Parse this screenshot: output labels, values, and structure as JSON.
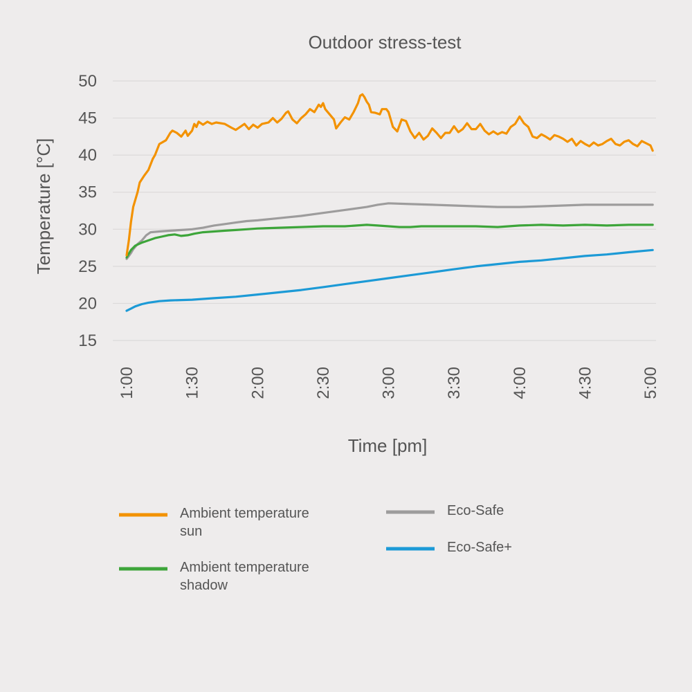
{
  "chart_data": {
    "type": "line",
    "title": "Outdoor stress-test",
    "xlabel": "Time [pm]",
    "ylabel": "Temperature [°C]",
    "ylim": [
      15,
      50
    ],
    "xlim": [
      "1:00",
      "5:00"
    ],
    "y_ticks": [
      "50",
      "45",
      "40",
      "35",
      "30",
      "25",
      "20",
      "15"
    ],
    "x_ticks": [
      "1:00",
      "1:30",
      "2:00",
      "2:30",
      "3:00",
      "3:30",
      "4:00",
      "4:30",
      "5:00"
    ],
    "grid": true,
    "legend_position": "bottom",
    "series": [
      {
        "name": "Ambient temperature sun",
        "color": "#f39200",
        "points": [
          [
            "1:00",
            26.5
          ],
          [
            "1:01",
            28.5
          ],
          [
            "1:02",
            31
          ],
          [
            "1:03",
            33
          ],
          [
            "1:05",
            35
          ],
          [
            "1:06",
            36.3
          ],
          [
            "1:08",
            37.2
          ],
          [
            "1:10",
            38
          ],
          [
            "1:12",
            39.5
          ],
          [
            "1:13",
            40
          ],
          [
            "1:15",
            41.5
          ],
          [
            "1:18",
            42
          ],
          [
            "1:20",
            43
          ],
          [
            "1:21",
            43.3
          ],
          [
            "1:23",
            43
          ],
          [
            "1:25",
            42.5
          ],
          [
            "1:27",
            43.3
          ],
          [
            "1:28",
            42.6
          ],
          [
            "1:30",
            43.3
          ],
          [
            "1:31",
            44.2
          ],
          [
            "1:32",
            43.8
          ],
          [
            "1:33",
            44.5
          ],
          [
            "1:35",
            44.1
          ],
          [
            "1:37",
            44.5
          ],
          [
            "1:39",
            44.2
          ],
          [
            "1:41",
            44.4
          ],
          [
            "1:45",
            44.2
          ],
          [
            "1:48",
            43.7
          ],
          [
            "1:50",
            43.4
          ],
          [
            "1:52",
            43.8
          ],
          [
            "1:54",
            44.2
          ],
          [
            "1:56",
            43.5
          ],
          [
            "1:58",
            44.1
          ],
          [
            "2:00",
            43.7
          ],
          [
            "2:02",
            44.2
          ],
          [
            "2:05",
            44.4
          ],
          [
            "2:07",
            45
          ],
          [
            "2:09",
            44.4
          ],
          [
            "2:11",
            44.9
          ],
          [
            "2:13",
            45.7
          ],
          [
            "2:14",
            45.9
          ],
          [
            "2:16",
            44.8
          ],
          [
            "2:18",
            44.3
          ],
          [
            "2:20",
            45
          ],
          [
            "2:22",
            45.5
          ],
          [
            "2:24",
            46.2
          ],
          [
            "2:26",
            45.8
          ],
          [
            "2:28",
            46.8
          ],
          [
            "2:29",
            46.5
          ],
          [
            "2:30",
            47
          ],
          [
            "2:31",
            46.2
          ],
          [
            "2:33",
            45.5
          ],
          [
            "2:35",
            44.8
          ],
          [
            "2:36",
            43.6
          ],
          [
            "2:38",
            44.4
          ],
          [
            "2:40",
            45.1
          ],
          [
            "2:42",
            44.8
          ],
          [
            "2:44",
            45.8
          ],
          [
            "2:46",
            47
          ],
          [
            "2:47",
            48
          ],
          [
            "2:48",
            48.2
          ],
          [
            "2:49",
            47.8
          ],
          [
            "2:50",
            47.2
          ],
          [
            "2:51",
            46.8
          ],
          [
            "2:52",
            45.8
          ],
          [
            "2:54",
            45.7
          ],
          [
            "2:56",
            45.5
          ],
          [
            "2:57",
            46.2
          ],
          [
            "2:59",
            46.2
          ],
          [
            "3:00",
            45.8
          ],
          [
            "3:02",
            43.8
          ],
          [
            "3:04",
            43.2
          ],
          [
            "3:06",
            44.8
          ],
          [
            "3:08",
            44.6
          ],
          [
            "3:10",
            43.2
          ],
          [
            "3:12",
            42.3
          ],
          [
            "3:14",
            43
          ],
          [
            "3:16",
            42.1
          ],
          [
            "3:18",
            42.6
          ],
          [
            "3:20",
            43.6
          ],
          [
            "3:22",
            43
          ],
          [
            "3:24",
            42.3
          ],
          [
            "3:26",
            43
          ],
          [
            "3:28",
            43
          ],
          [
            "3:30",
            43.9
          ],
          [
            "3:32",
            43.1
          ],
          [
            "3:34",
            43.5
          ],
          [
            "3:36",
            44.3
          ],
          [
            "3:38",
            43.5
          ],
          [
            "3:40",
            43.5
          ],
          [
            "3:42",
            44.2
          ],
          [
            "3:44",
            43.3
          ],
          [
            "3:46",
            42.8
          ],
          [
            "3:48",
            43.2
          ],
          [
            "3:50",
            42.8
          ],
          [
            "3:52",
            43.1
          ],
          [
            "3:54",
            42.9
          ],
          [
            "3:56",
            43.8
          ],
          [
            "3:58",
            44.2
          ],
          [
            "4:00",
            45.2
          ],
          [
            "4:02",
            44.3
          ],
          [
            "4:04",
            43.8
          ],
          [
            "4:06",
            42.5
          ],
          [
            "4:08",
            42.3
          ],
          [
            "4:10",
            42.8
          ],
          [
            "4:12",
            42.5
          ],
          [
            "4:14",
            42.1
          ],
          [
            "4:16",
            42.7
          ],
          [
            "4:18",
            42.5
          ],
          [
            "4:20",
            42.2
          ],
          [
            "4:22",
            41.8
          ],
          [
            "4:24",
            42.2
          ],
          [
            "4:26",
            41.3
          ],
          [
            "4:28",
            41.9
          ],
          [
            "4:30",
            41.5
          ],
          [
            "4:32",
            41.2
          ],
          [
            "4:34",
            41.7
          ],
          [
            "4:36",
            41.3
          ],
          [
            "4:38",
            41.5
          ],
          [
            "4:40",
            41.9
          ],
          [
            "4:42",
            42.2
          ],
          [
            "4:44",
            41.5
          ],
          [
            "4:46",
            41.3
          ],
          [
            "4:48",
            41.8
          ],
          [
            "4:50",
            42
          ],
          [
            "4:52",
            41.5
          ],
          [
            "4:54",
            41.2
          ],
          [
            "4:56",
            41.9
          ],
          [
            "4:58",
            41.6
          ],
          [
            "5:00",
            41.3
          ],
          [
            "5:01",
            40.6
          ]
        ]
      },
      {
        "name": "Ambient temperature shadow",
        "color": "#3da53a",
        "points": [
          [
            "1:00",
            26.2
          ],
          [
            "1:02",
            27.2
          ],
          [
            "1:04",
            27.8
          ],
          [
            "1:07",
            28.2
          ],
          [
            "1:10",
            28.5
          ],
          [
            "1:13",
            28.8
          ],
          [
            "1:16",
            29.0
          ],
          [
            "1:19",
            29.2
          ],
          [
            "1:22",
            29.3
          ],
          [
            "1:25",
            29.1
          ],
          [
            "1:28",
            29.2
          ],
          [
            "1:31",
            29.4
          ],
          [
            "1:35",
            29.6
          ],
          [
            "1:40",
            29.7
          ],
          [
            "1:45",
            29.8
          ],
          [
            "1:50",
            29.9
          ],
          [
            "1:55",
            30.0
          ],
          [
            "2:00",
            30.1
          ],
          [
            "2:10",
            30.2
          ],
          [
            "2:20",
            30.3
          ],
          [
            "2:30",
            30.4
          ],
          [
            "2:40",
            30.4
          ],
          [
            "2:50",
            30.6
          ],
          [
            "2:55",
            30.5
          ],
          [
            "3:00",
            30.4
          ],
          [
            "3:05",
            30.3
          ],
          [
            "3:10",
            30.3
          ],
          [
            "3:15",
            30.4
          ],
          [
            "3:20",
            30.4
          ],
          [
            "3:30",
            30.4
          ],
          [
            "3:40",
            30.4
          ],
          [
            "3:50",
            30.3
          ],
          [
            "4:00",
            30.5
          ],
          [
            "4:10",
            30.6
          ],
          [
            "4:20",
            30.5
          ],
          [
            "4:30",
            30.6
          ],
          [
            "4:40",
            30.5
          ],
          [
            "4:50",
            30.6
          ],
          [
            "5:01",
            30.6
          ]
        ]
      },
      {
        "name": "Eco-Safe",
        "color": "#9d9c9c",
        "points": [
          [
            "1:00",
            26.0
          ],
          [
            "1:01",
            26.4
          ],
          [
            "1:02",
            26.8
          ],
          [
            "1:03",
            27.3
          ],
          [
            "1:05",
            28.0
          ],
          [
            "1:07",
            28.5
          ],
          [
            "1:09",
            29.2
          ],
          [
            "1:11",
            29.6
          ],
          [
            "1:15",
            29.7
          ],
          [
            "1:20",
            29.8
          ],
          [
            "1:25",
            29.9
          ],
          [
            "1:30",
            30.0
          ],
          [
            "1:35",
            30.2
          ],
          [
            "1:40",
            30.5
          ],
          [
            "1:45",
            30.7
          ],
          [
            "1:50",
            30.9
          ],
          [
            "1:55",
            31.1
          ],
          [
            "2:00",
            31.2
          ],
          [
            "2:10",
            31.5
          ],
          [
            "2:20",
            31.8
          ],
          [
            "2:30",
            32.2
          ],
          [
            "2:40",
            32.6
          ],
          [
            "2:50",
            33.0
          ],
          [
            "2:55",
            33.3
          ],
          [
            "3:00",
            33.5
          ],
          [
            "3:10",
            33.4
          ],
          [
            "3:20",
            33.3
          ],
          [
            "3:30",
            33.2
          ],
          [
            "3:40",
            33.1
          ],
          [
            "3:50",
            33.0
          ],
          [
            "4:00",
            33.0
          ],
          [
            "4:10",
            33.1
          ],
          [
            "4:20",
            33.2
          ],
          [
            "4:30",
            33.3
          ],
          [
            "4:40",
            33.3
          ],
          [
            "4:50",
            33.3
          ],
          [
            "5:01",
            33.3
          ]
        ]
      },
      {
        "name": "Eco-Safe+",
        "color": "#1c9ad6",
        "points": [
          [
            "1:00",
            19.0
          ],
          [
            "1:02",
            19.3
          ],
          [
            "1:04",
            19.6
          ],
          [
            "1:07",
            19.9
          ],
          [
            "1:10",
            20.1
          ],
          [
            "1:15",
            20.3
          ],
          [
            "1:20",
            20.4
          ],
          [
            "1:30",
            20.5
          ],
          [
            "1:40",
            20.7
          ],
          [
            "1:50",
            20.9
          ],
          [
            "2:00",
            21.2
          ],
          [
            "2:10",
            21.5
          ],
          [
            "2:20",
            21.8
          ],
          [
            "2:30",
            22.2
          ],
          [
            "2:40",
            22.6
          ],
          [
            "2:50",
            23.0
          ],
          [
            "3:00",
            23.4
          ],
          [
            "3:10",
            23.8
          ],
          [
            "3:20",
            24.2
          ],
          [
            "3:30",
            24.6
          ],
          [
            "3:40",
            25.0
          ],
          [
            "3:50",
            25.3
          ],
          [
            "4:00",
            25.6
          ],
          [
            "4:10",
            25.8
          ],
          [
            "4:20",
            26.1
          ],
          [
            "4:30",
            26.4
          ],
          [
            "4:40",
            26.6
          ],
          [
            "4:50",
            26.9
          ],
          [
            "5:01",
            27.2
          ]
        ]
      }
    ]
  },
  "legend": {
    "items": [
      {
        "lines": [
          "Ambient temperature",
          "sun"
        ],
        "color": "#f39200"
      },
      {
        "lines": [
          "Ambient temperature",
          "shadow"
        ],
        "color": "#3da53a"
      },
      {
        "lines": [
          "Eco-Safe"
        ],
        "color": "#9d9c9c"
      },
      {
        "lines": [
          "Eco-Safe+"
        ],
        "color": "#1c9ad6"
      }
    ]
  }
}
